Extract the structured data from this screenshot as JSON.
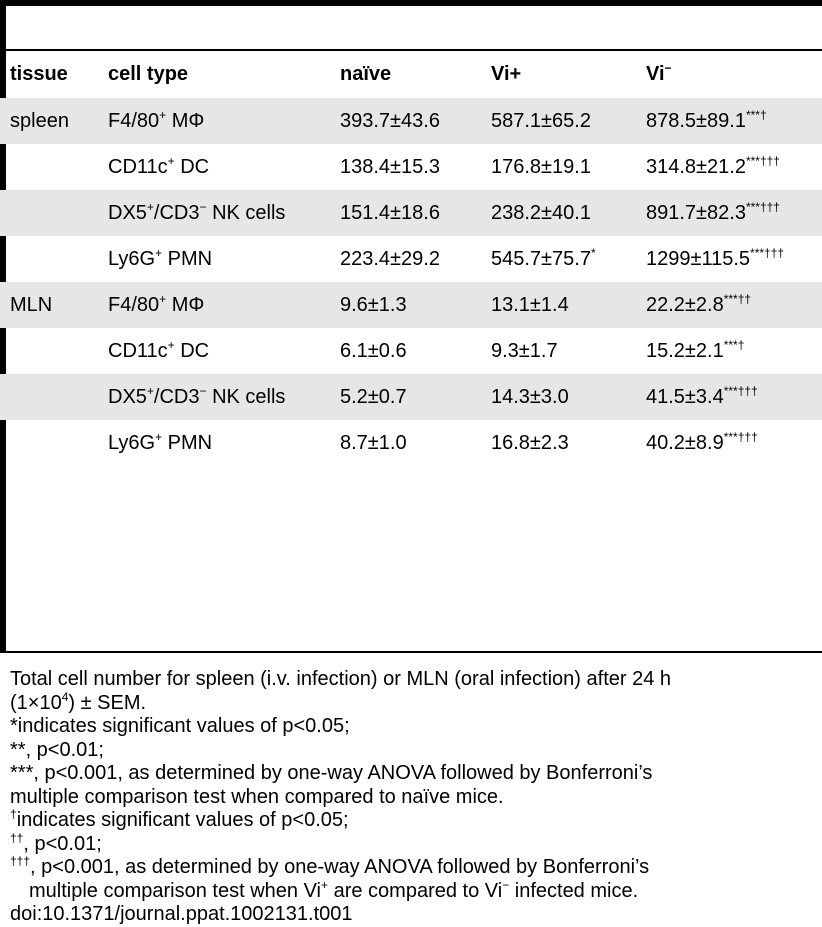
{
  "table": {
    "headers": [
      "tissue",
      "cell type",
      "naïve",
      "Vi+",
      "Vi"
    ],
    "header_vi_minus_sup": "−",
    "rows": [
      {
        "tissue": "spleen",
        "cell_main": "F4/80",
        "cell_sup": "+",
        "cell_rest": " MΦ",
        "naive": "393.7±43.6",
        "vi_plus": "587.1±65.2",
        "vi_plus_sup": "",
        "vi_minus": "878.5±89.1",
        "vi_minus_sup": "***†"
      },
      {
        "tissue": "",
        "cell_main": "CD11c",
        "cell_sup": "+",
        "cell_rest": " DC",
        "naive": "138.4±15.3",
        "vi_plus": "176.8±19.1",
        "vi_plus_sup": "",
        "vi_minus": "314.8±21.2",
        "vi_minus_sup": "***†††"
      },
      {
        "tissue": "",
        "cell_main": "DX5",
        "cell_sup": "+",
        "cell_rest": "/CD3",
        "cell_sup2": "−",
        "cell_rest2": " NK cells",
        "naive": "151.4±18.6",
        "vi_plus": "238.2±40.1",
        "vi_plus_sup": "",
        "vi_minus": "891.7±82.3",
        "vi_minus_sup": "***†††"
      },
      {
        "tissue": "",
        "cell_main": "Ly6G",
        "cell_sup": "+",
        "cell_rest": " PMN",
        "naive": "223.4±29.2",
        "vi_plus": "545.7±75.7",
        "vi_plus_sup": "*",
        "vi_minus": "1299±115.5",
        "vi_minus_sup": "***†††"
      },
      {
        "tissue": "MLN",
        "cell_main": "F4/80",
        "cell_sup": "+",
        "cell_rest": " MΦ",
        "naive": "9.6±1.3",
        "vi_plus": "13.1±1.4",
        "vi_plus_sup": "",
        "vi_minus": "22.2±2.8",
        "vi_minus_sup": "***††"
      },
      {
        "tissue": "",
        "cell_main": "CD11c",
        "cell_sup": "+",
        "cell_rest": " DC",
        "naive": "6.1±0.6",
        "vi_plus": "9.3±1.7",
        "vi_plus_sup": "",
        "vi_minus": "15.2±2.1",
        "vi_minus_sup": "***†"
      },
      {
        "tissue": "",
        "cell_main": "DX5",
        "cell_sup": "+",
        "cell_rest": "/CD3",
        "cell_sup2": "−",
        "cell_rest2": " NK cells",
        "naive": "5.2±0.7",
        "vi_plus": "14.3±3.0",
        "vi_plus_sup": "",
        "vi_minus": "41.5±3.4",
        "vi_minus_sup": "***†††"
      },
      {
        "tissue": "",
        "cell_main": "Ly6G",
        "cell_sup": "+",
        "cell_rest": " PMN",
        "naive": "8.7±1.0",
        "vi_plus": "16.8±2.3",
        "vi_plus_sup": "",
        "vi_minus": "40.2±8.9",
        "vi_minus_sup": "***†††"
      }
    ]
  },
  "notes": {
    "n1a": "Total cell number for spleen (i.v. infection) or MLN (oral infection) after 24 h",
    "n1b_pre": "(1×10",
    "n1b_sup": "4",
    "n1b_post": ") ± SEM.",
    "n2": "*indicates significant values of p<0.05;",
    "n3": "**, p<0.01;",
    "n4a": "***, p<0.001, as determined by one-way ANOVA followed by Bonferroni’s",
    "n4b": "multiple comparison test when compared to naïve mice.",
    "n5_sup": "†",
    "n5": "indicates significant values of p<0.05;",
    "n6_sup": "††",
    "n6": ", p<0.01;",
    "n7_sup": "†††",
    "n7": ", p<0.001, as determined by one-way ANOVA followed by Bonferroni’s",
    "n8_pre": "multiple comparison test when Vi",
    "n8_sup1": "+",
    "n8_mid": " are compared to Vi",
    "n8_sup2": "−",
    "n8_post": " infected mice.",
    "doi": "doi:10.1371/journal.ppat.1002131.t001"
  }
}
